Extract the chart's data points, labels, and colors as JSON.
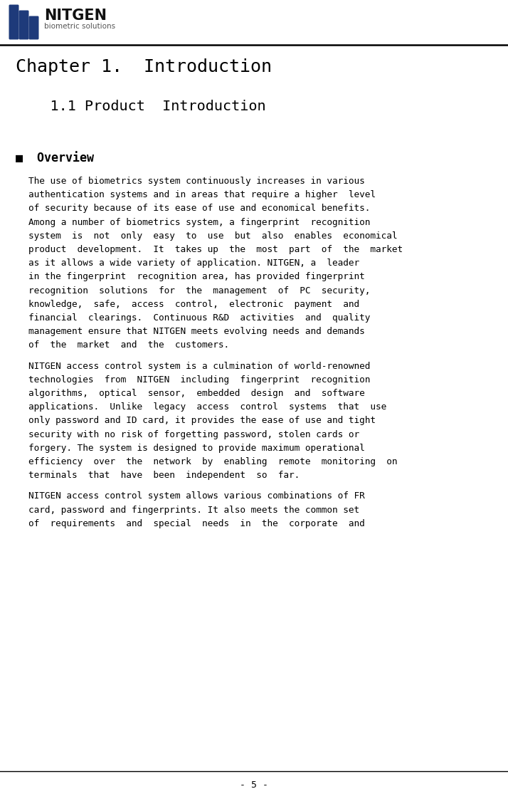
{
  "logo_text_nitgen": "NITGEN",
  "logo_text_sub": "biometric solutions",
  "chapter_title": "Chapter 1.  Introduction",
  "section_title": "    1.1 Product  Introduction",
  "overview_label": "■  Overview",
  "paragraph1_lines": [
    "The use of biometrics system continuously increases in various",
    "authentication systems and in areas that require a higher  level",
    "of security because of its ease of use and economical benefits.",
    "Among a number of biometrics system, a fingerprint  recognition",
    "system  is  not  only  easy  to  use  but  also  enables  economical",
    "product  development.  It  takes up  the  most  part  of  the  market",
    "as it allows a wide variety of application. NITGEN, a  leader",
    "in the fingerprint  recognition area, has provided fingerprint",
    "recognition  solutions  for  the  management  of  PC  security,",
    "knowledge,  safe,  access  control,  electronic  payment  and",
    "financial  clearings.  Continuous R&D  activities  and  quality",
    "management ensure that NITGEN meets evolving needs and demands",
    "of  the  market  and  the  customers."
  ],
  "paragraph2_lines": [
    "NITGEN access control system is a culmination of world-renowned",
    "technologies  from  NITGEN  including  fingerprint  recognition",
    "algorithms,  optical  sensor,  embedded  design  and  software",
    "applications.  Unlike  legacy  access  control  systems  that  use",
    "only password and ID card, it provides the ease of use and tight",
    "security with no risk of forgetting password, stolen cards or",
    "forgery. The system is designed to provide maximum operational",
    "efficiency  over  the  network  by  enabling  remote  monitoring  on",
    "terminals  that  have  been  independent  so  far."
  ],
  "paragraph3_lines": [
    "NITGEN access control system allows various combinations of FR",
    "card, password and fingerprints. It also meets the common set",
    "of  requirements  and  special  needs  in  the  corporate  and"
  ],
  "page_number": "- 5 -",
  "bg_color": "#ffffff",
  "text_color": "#000000",
  "logo_color": "#1e3a7a",
  "header_line_color": "#000000",
  "footer_line_color": "#000000"
}
